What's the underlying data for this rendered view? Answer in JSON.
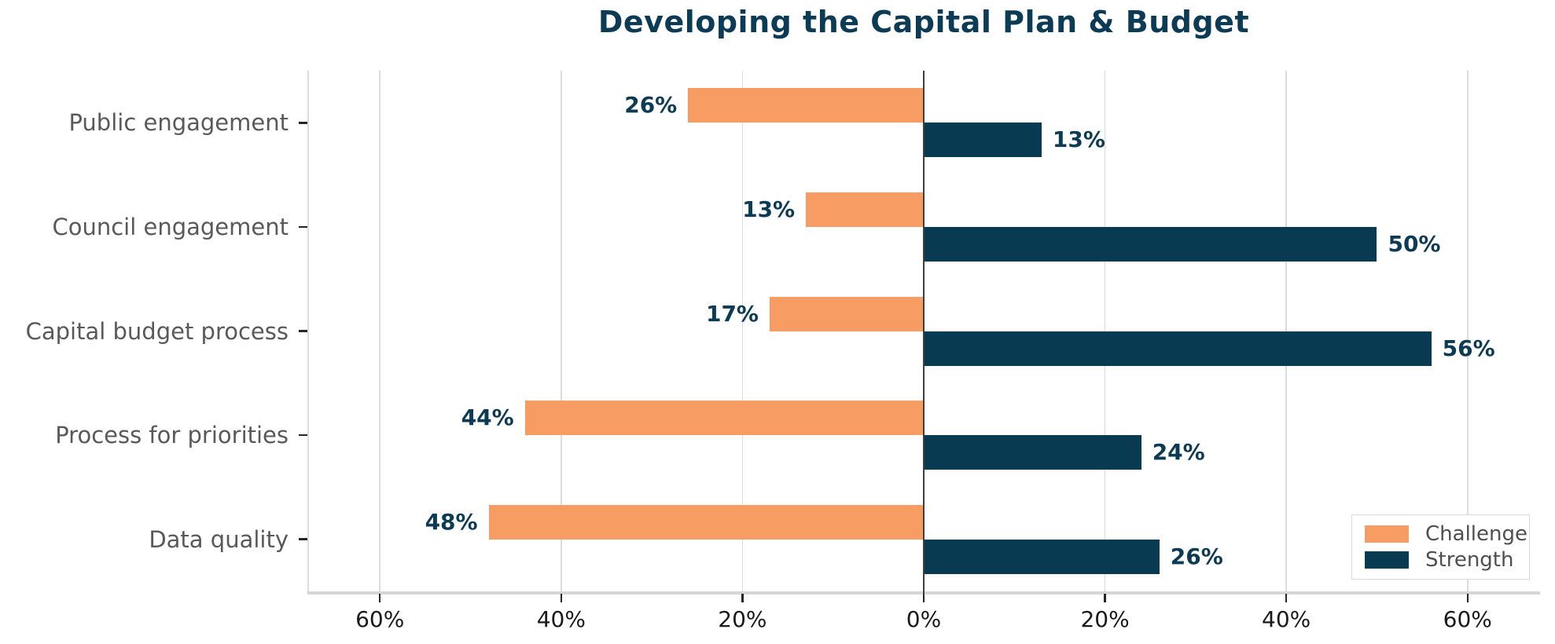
{
  "chart_data": {
    "type": "bar",
    "orientation": "horizontal-diverging",
    "title": "Developing the Capital Plan & Budget",
    "categories": [
      "Public engagement",
      "Council engagement",
      "Capital budget process",
      "Process for priorities",
      "Data quality"
    ],
    "series": [
      {
        "name": "Challenge",
        "side": "left",
        "color": "#F79C63",
        "values": [
          26,
          13,
          17,
          44,
          48
        ],
        "value_labels": [
          "26%",
          "13%",
          "17%",
          "44%",
          "48%"
        ]
      },
      {
        "name": "Strength",
        "side": "right",
        "color": "#083A52",
        "values": [
          13,
          50,
          56,
          24,
          26
        ],
        "value_labels": [
          "13%",
          "50%",
          "56%",
          "24%",
          "26%"
        ]
      }
    ],
    "x_ticks": [
      {
        "value": -60,
        "label": "60%"
      },
      {
        "value": -40,
        "label": "40%"
      },
      {
        "value": -20,
        "label": "20%"
      },
      {
        "value": 0,
        "label": "0%"
      },
      {
        "value": 20,
        "label": "20%"
      },
      {
        "value": 40,
        "label": "40%"
      },
      {
        "value": 60,
        "label": "60%"
      }
    ],
    "xlim": [
      -68,
      68
    ],
    "grid": true,
    "legend": {
      "position": "bottom-right",
      "entries": [
        "Challenge",
        "Strength"
      ]
    }
  },
  "colors": {
    "challenge": "#F79C63",
    "strength": "#083A52",
    "title_text": "#0C3B55",
    "value_label_text": "#0C3B55",
    "category_label_text": "#595959",
    "tick_label_text": "#1A1A1A",
    "tick_mark": "#262626",
    "gridline": "#DCDCDC",
    "axis_spine": "#D6D6D6",
    "zero_line": "#3F3F3F",
    "legend_border": "#D9D9D9",
    "legend_text": "#4F4F4F",
    "background": "#FFFFFF"
  }
}
